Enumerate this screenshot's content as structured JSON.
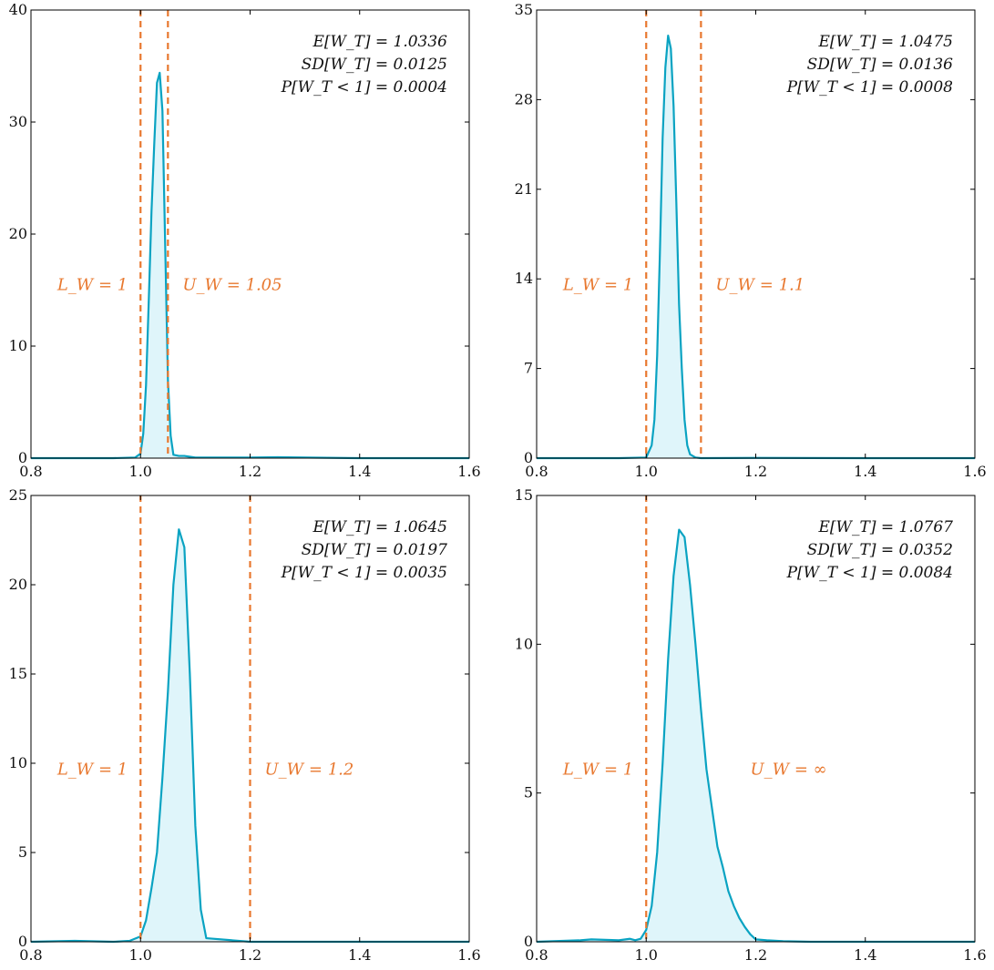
{
  "colors": {
    "density_line": "#0aa3c2",
    "density_fill": "#dff5fa",
    "bound_line": "#e8782f",
    "axis": "#000000"
  },
  "chart_data": [
    {
      "type": "area",
      "xlim": [
        0.8,
        1.6
      ],
      "ylim": [
        0,
        40
      ],
      "xticks": [
        0.8,
        1.0,
        1.2,
        1.4,
        1.6
      ],
      "xtick_labels": [
        "0.8",
        "1.0",
        "1.2",
        "1.4",
        "1.6"
      ],
      "yticks": [
        0,
        10,
        20,
        30,
        40
      ],
      "ytick_labels": [
        "0",
        "10",
        "20",
        "30",
        "40"
      ],
      "grid": false,
      "stats": [
        "E[W_T] = 1.0336",
        "SD[W_T] = 0.0125",
        "P[W_T < 1] = 0.0004"
      ],
      "lower_bound": {
        "x": 1.0,
        "label": "L_W = 1"
      },
      "upper_bound": {
        "x": 1.05,
        "label": "U_W = 1.05"
      },
      "series": [
        {
          "x": [
            0.8,
            0.95,
            0.99,
            1.0,
            1.005,
            1.01,
            1.015,
            1.02,
            1.025,
            1.03,
            1.035,
            1.04,
            1.045,
            1.05,
            1.055,
            1.06,
            1.07,
            1.08,
            1.1,
            1.2,
            1.25,
            1.4,
            1.6
          ],
          "y": [
            0,
            0,
            0.05,
            0.4,
            2.2,
            6.5,
            14,
            22,
            28,
            33.5,
            34.4,
            31,
            19,
            7,
            2,
            0.3,
            0.2,
            0.2,
            0.05,
            0.05,
            0.08,
            0,
            0
          ]
        }
      ]
    },
    {
      "type": "area",
      "xlim": [
        0.8,
        1.6
      ],
      "ylim": [
        0,
        35
      ],
      "xticks": [
        0.8,
        1.0,
        1.2,
        1.4,
        1.6
      ],
      "xtick_labels": [
        "0.8",
        "1.0",
        "1.2",
        "1.4",
        "1.6"
      ],
      "yticks": [
        0,
        7,
        14,
        21,
        28,
        35
      ],
      "ytick_labels": [
        "0",
        "7",
        "14",
        "21",
        "28",
        "35"
      ],
      "grid": false,
      "stats": [
        "E[W_T] = 1.0475",
        "SD[W_T] = 0.0136",
        "P[W_T < 1] = 0.0008"
      ],
      "lower_bound": {
        "x": 1.0,
        "label": "L_W = 1"
      },
      "upper_bound": {
        "x": 1.1,
        "label": "U_W = 1.1"
      },
      "series": [
        {
          "x": [
            0.8,
            0.95,
            1.0,
            1.01,
            1.015,
            1.02,
            1.025,
            1.03,
            1.035,
            1.04,
            1.045,
            1.05,
            1.055,
            1.06,
            1.065,
            1.07,
            1.075,
            1.08,
            1.09,
            1.1,
            1.2,
            1.4,
            1.6
          ],
          "y": [
            0,
            0,
            0.05,
            1,
            3,
            8,
            16,
            25,
            30.5,
            33,
            32,
            27.5,
            20,
            12,
            7,
            3,
            1,
            0.3,
            0.05,
            0,
            0.02,
            0,
            0
          ]
        }
      ]
    },
    {
      "type": "area",
      "xlim": [
        0.8,
        1.6
      ],
      "ylim": [
        0,
        25
      ],
      "xticks": [
        0.8,
        1.0,
        1.2,
        1.4,
        1.6
      ],
      "xtick_labels": [
        "0.8",
        "1.0",
        "1.2",
        "1.4",
        "1.6"
      ],
      "yticks": [
        0,
        5,
        10,
        15,
        20,
        25
      ],
      "ytick_labels": [
        "0",
        "5",
        "10",
        "15",
        "20",
        "25"
      ],
      "grid": false,
      "stats": [
        "E[W_T] = 1.0645",
        "SD[W_T] = 0.0197",
        "P[W_T < 1] = 0.0035"
      ],
      "lower_bound": {
        "x": 1.0,
        "label": "L_W = 1"
      },
      "upper_bound": {
        "x": 1.2,
        "label": "U_W = 1.2"
      },
      "series": [
        {
          "x": [
            0.8,
            0.88,
            0.95,
            0.98,
            1.0,
            1.01,
            1.02,
            1.03,
            1.04,
            1.05,
            1.06,
            1.07,
            1.08,
            1.09,
            1.1,
            1.11,
            1.12,
            1.2,
            1.4,
            1.6
          ],
          "y": [
            0,
            0.05,
            0,
            0.05,
            0.3,
            1.2,
            3,
            5,
            9.2,
            14,
            20,
            23.1,
            22.1,
            15,
            6.5,
            1.8,
            0.2,
            0,
            0,
            0
          ]
        }
      ]
    },
    {
      "type": "area",
      "xlim": [
        0.8,
        1.6
      ],
      "ylim": [
        0,
        15
      ],
      "xticks": [
        0.8,
        1.0,
        1.2,
        1.4,
        1.6
      ],
      "xtick_labels": [
        "0.8",
        "1.0",
        "1.2",
        "1.4",
        "1.6"
      ],
      "yticks": [
        0,
        5,
        10,
        15
      ],
      "ytick_labels": [
        "0",
        "5",
        "10",
        "15"
      ],
      "grid": false,
      "stats": [
        "E[W_T] = 1.0767",
        "SD[W_T] = 0.0352",
        "P[W_T < 1] = 0.0084"
      ],
      "lower_bound": {
        "x": 1.0,
        "label": "L_W = 1"
      },
      "upper_bound": {
        "x": null,
        "label": "U_W = ∞"
      },
      "series": [
        {
          "x": [
            0.8,
            0.88,
            0.9,
            0.95,
            0.97,
            0.98,
            0.99,
            1.0,
            1.01,
            1.02,
            1.03,
            1.04,
            1.05,
            1.06,
            1.07,
            1.08,
            1.09,
            1.1,
            1.11,
            1.12,
            1.13,
            1.14,
            1.15,
            1.16,
            1.17,
            1.18,
            1.19,
            1.2,
            1.22,
            1.25,
            1.3,
            1.4,
            1.6
          ],
          "y": [
            0,
            0.05,
            0.08,
            0.05,
            0.1,
            0.05,
            0.1,
            0.4,
            1.2,
            3,
            6,
            9.5,
            12.3,
            13.85,
            13.6,
            12,
            10,
            7.8,
            5.8,
            4.5,
            3.2,
            2.5,
            1.7,
            1.2,
            0.8,
            0.5,
            0.25,
            0.08,
            0.05,
            0.02,
            0,
            0,
            0
          ]
        }
      ]
    }
  ]
}
